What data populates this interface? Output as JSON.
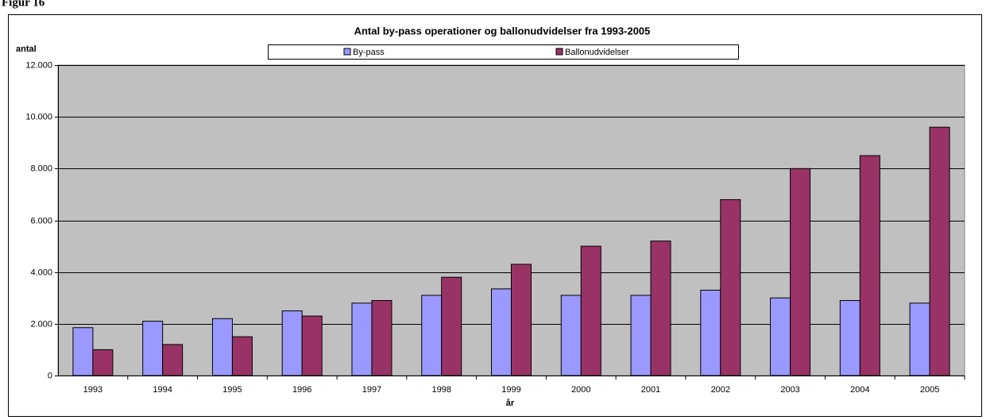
{
  "figure_label": "Figur 16",
  "chart_data": {
    "type": "bar",
    "title": "Antal by-pass operationer og ballonudvidelser fra 1993-2005",
    "y_label": "antal",
    "x_label": "år",
    "categories": [
      "1993",
      "1994",
      "1995",
      "1996",
      "1997",
      "1998",
      "1999",
      "2000",
      "2001",
      "2002",
      "2003",
      "2004",
      "2005"
    ],
    "series": [
      {
        "name": "By-pass",
        "color": "#9999ff",
        "values": [
          1850,
          2100,
          2200,
          2500,
          2800,
          3100,
          3350,
          3100,
          3100,
          3300,
          3000,
          2900,
          2800
        ]
      },
      {
        "name": "Ballonudvidelser",
        "color": "#993366",
        "values": [
          1000,
          1200,
          1500,
          2300,
          2900,
          3800,
          4300,
          5000,
          5200,
          6800,
          8000,
          8500,
          9600
        ]
      }
    ],
    "ylim": [
      0,
      12000
    ],
    "yticks": [
      0,
      {
        "value": 2000,
        "label": "2.000"
      },
      {
        "value": 4000,
        "label": "4.000"
      },
      {
        "value": 6000,
        "label": "6.000"
      },
      {
        "value": 8000,
        "label": "8.000"
      },
      {
        "value": 10000,
        "label": "10.000"
      },
      {
        "value": 12000,
        "label": "12.000"
      }
    ],
    "grid": true,
    "legend": "top"
  }
}
